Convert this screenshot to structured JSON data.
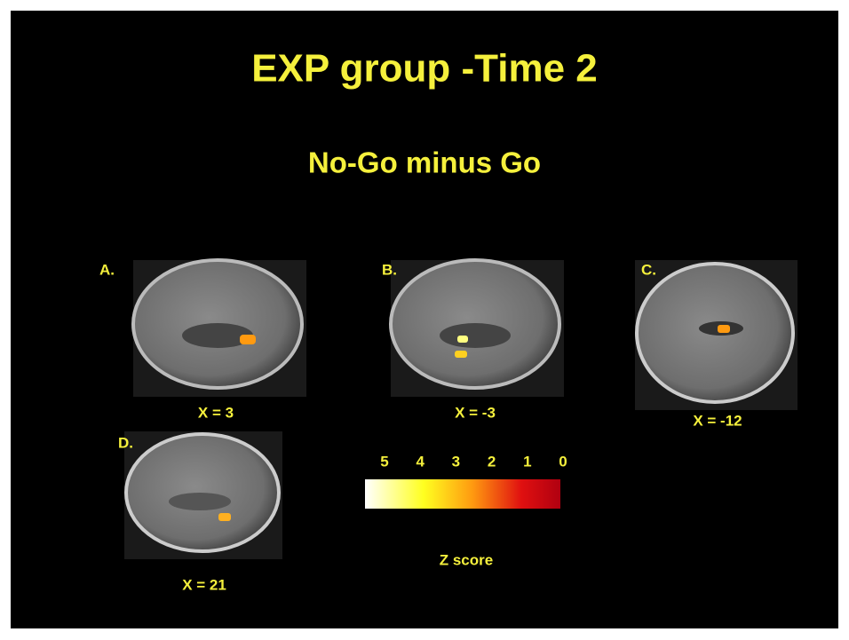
{
  "title": "EXP group -Time 2",
  "subtitle": "No-Go minus Go",
  "panels": [
    {
      "label": "A.",
      "caption": "X = 3"
    },
    {
      "label": "B.",
      "caption": "X = -3"
    },
    {
      "label": "C.",
      "caption": "X = -12"
    },
    {
      "label": "D.",
      "caption": "X = 21"
    }
  ],
  "colorbar": {
    "ticks": [
      5,
      4,
      3,
      2,
      1,
      0
    ],
    "label": "Z score"
  }
}
